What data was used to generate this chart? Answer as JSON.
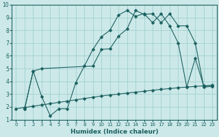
{
  "xlabel": "Humidex (Indice chaleur)",
  "bg_color": "#cce8e8",
  "grid_color": "#99cccc",
  "line_color": "#1a5f5f",
  "xlim": [
    -0.5,
    23.5
  ],
  "ylim": [
    1,
    10
  ],
  "xticks": [
    0,
    1,
    2,
    3,
    4,
    5,
    6,
    7,
    8,
    9,
    10,
    11,
    12,
    13,
    14,
    15,
    16,
    17,
    18,
    19,
    20,
    21,
    22,
    23
  ],
  "yticks": [
    1,
    2,
    3,
    4,
    5,
    6,
    7,
    8,
    9,
    10
  ],
  "line1_x": [
    0,
    1,
    2,
    3,
    4,
    5,
    6,
    7,
    8,
    9,
    10,
    11,
    12,
    13,
    14,
    15,
    16,
    17,
    18,
    19,
    20,
    21,
    22,
    23
  ],
  "line1_y": [
    1.85,
    1.95,
    2.05,
    2.15,
    2.25,
    2.35,
    2.45,
    2.55,
    2.65,
    2.75,
    2.85,
    2.93,
    3.0,
    3.08,
    3.15,
    3.22,
    3.3,
    3.37,
    3.43,
    3.5,
    3.55,
    3.6,
    3.65,
    3.7
  ],
  "line2_x": [
    1,
    2,
    3,
    4,
    5,
    6,
    7,
    8,
    9,
    10,
    11,
    12,
    13,
    14,
    15,
    16,
    17,
    18,
    19,
    20,
    21,
    22,
    23
  ],
  "line2_y": [
    1.85,
    4.8,
    2.8,
    1.3,
    1.85,
    1.85,
    3.9,
    5.2,
    6.5,
    7.5,
    8.0,
    9.2,
    9.55,
    9.1,
    9.3,
    8.6,
    9.3,
    8.35,
    7.0,
    3.55,
    5.8,
    3.6,
    3.6
  ],
  "line3_x": [
    1,
    2,
    3,
    9,
    10,
    11,
    12,
    13,
    14,
    15,
    16,
    17,
    18,
    19,
    20,
    21,
    22,
    23
  ],
  "line3_y": [
    1.85,
    4.8,
    5.0,
    5.2,
    6.5,
    6.55,
    7.55,
    8.1,
    9.55,
    9.25,
    9.3,
    8.6,
    9.3,
    8.35,
    8.35,
    7.0,
    3.55,
    3.6
  ]
}
